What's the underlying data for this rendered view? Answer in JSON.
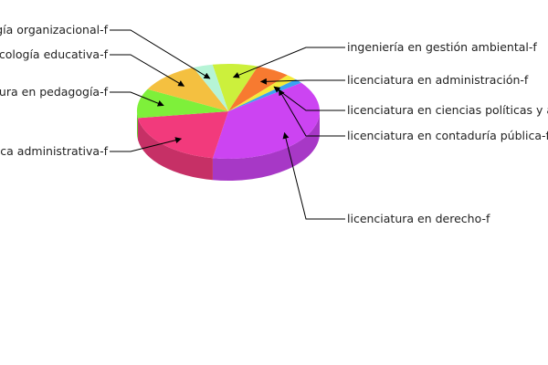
{
  "chart_data": {
    "type": "pie",
    "style": "3d-exploded",
    "title": "",
    "legend": "none",
    "slices": [
      {
        "label": "ingeniería en gestión ambiental-f",
        "value": 8,
        "color": "#ccf03c"
      },
      {
        "label": "licenciatura en administración-f",
        "value": 6,
        "color": "#f77a30"
      },
      {
        "label": "licenciatura en ciencias políticas y administración pública-f",
        "value": 2,
        "color": "#f4ea3a"
      },
      {
        "label": "licenciatura en contaduría pública-f",
        "value": 1.5,
        "color": "#3aa2f2"
      },
      {
        "label": "licenciatura en derecho-f",
        "value": 38,
        "color": "#cc44f2"
      },
      {
        "label": "licenciatura en informática administrativa-f",
        "value": 20,
        "color": "#f23a7c"
      },
      {
        "label": "licenciatura en pedagogía-f",
        "value": 10,
        "color": "#7ef03a"
      },
      {
        "label": "licenciatura en psicología educativa-f",
        "value": 11,
        "color": "#f4c040"
      },
      {
        "label": "licenciatura en psicología organizacional-f",
        "value": 3.5,
        "color": "#b6f4d6"
      }
    ]
  }
}
